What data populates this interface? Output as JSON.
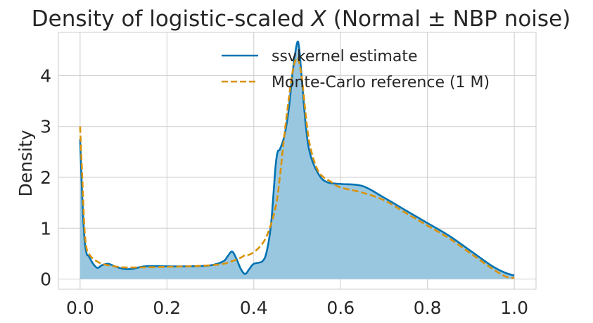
{
  "chart_data": {
    "type": "area",
    "title": "Density of logistic-scaled X (Normal ± NBP noise)",
    "title_parts": {
      "prefix": "Density of logistic-scaled ",
      "italic": "X",
      "suffix": " (Normal ± NBP noise)"
    },
    "xlabel": "",
    "ylabel": "Density",
    "xlim": [
      -0.05,
      1.05
    ],
    "ylim": [
      -0.2,
      4.85
    ],
    "x_ticks": [
      0.0,
      0.2,
      0.4,
      0.6,
      0.8,
      1.0
    ],
    "x_tick_labels": [
      "0.0",
      "0.2",
      "0.4",
      "0.6",
      "0.8",
      "1.0"
    ],
    "y_ticks": [
      0,
      1,
      2,
      3,
      4
    ],
    "y_tick_labels": [
      "0",
      "1",
      "2",
      "3",
      "4"
    ],
    "grid": true,
    "legend_position": "top-right",
    "series": [
      {
        "name": "ssvkernel estimate",
        "style": "solid",
        "color": "#0072b2",
        "fill_color": "#9ac7e0",
        "filled": true,
        "x": [
          0.0,
          0.005,
          0.01,
          0.015,
          0.02,
          0.03,
          0.04,
          0.05,
          0.065,
          0.08,
          0.1,
          0.12,
          0.15,
          0.2,
          0.25,
          0.3,
          0.33,
          0.34,
          0.35,
          0.36,
          0.37,
          0.38,
          0.39,
          0.4,
          0.42,
          0.43,
          0.44,
          0.45,
          0.455,
          0.46,
          0.47,
          0.48,
          0.49,
          0.5,
          0.505,
          0.51,
          0.52,
          0.53,
          0.55,
          0.57,
          0.6,
          0.65,
          0.7,
          0.75,
          0.8,
          0.85,
          0.9,
          0.95,
          0.98,
          1.0
        ],
        "y": [
          2.75,
          1.6,
          0.8,
          0.5,
          0.45,
          0.3,
          0.22,
          0.27,
          0.3,
          0.25,
          0.2,
          0.2,
          0.25,
          0.25,
          0.25,
          0.27,
          0.35,
          0.45,
          0.54,
          0.4,
          0.2,
          0.1,
          0.2,
          0.3,
          0.35,
          0.55,
          1.1,
          2.2,
          2.5,
          2.55,
          2.8,
          3.3,
          4.1,
          4.65,
          4.5,
          4.0,
          3.0,
          2.45,
          2.05,
          1.9,
          1.87,
          1.83,
          1.6,
          1.35,
          1.1,
          0.85,
          0.55,
          0.25,
          0.12,
          0.07
        ]
      },
      {
        "name": "Monte-Carlo reference (1 M)",
        "style": "dashed",
        "color": "#d9920a",
        "filled": false,
        "x": [
          0.0,
          0.005,
          0.01,
          0.015,
          0.02,
          0.03,
          0.05,
          0.08,
          0.1,
          0.15,
          0.2,
          0.25,
          0.3,
          0.33,
          0.35,
          0.37,
          0.38,
          0.39,
          0.41,
          0.43,
          0.45,
          0.46,
          0.47,
          0.48,
          0.49,
          0.5,
          0.51,
          0.52,
          0.53,
          0.55,
          0.58,
          0.6,
          0.65,
          0.7,
          0.75,
          0.8,
          0.85,
          0.9,
          0.95,
          0.98,
          1.0
        ],
        "y": [
          3.0,
          2.0,
          1.0,
          0.6,
          0.5,
          0.4,
          0.3,
          0.25,
          0.23,
          0.23,
          0.24,
          0.25,
          0.27,
          0.3,
          0.35,
          0.42,
          0.47,
          0.48,
          0.6,
          0.85,
          1.4,
          2.0,
          2.8,
          3.5,
          4.1,
          4.35,
          4.0,
          3.2,
          2.6,
          2.1,
          1.9,
          1.8,
          1.7,
          1.55,
          1.3,
          1.05,
          0.8,
          0.5,
          0.2,
          0.05,
          0.02
        ]
      }
    ]
  }
}
